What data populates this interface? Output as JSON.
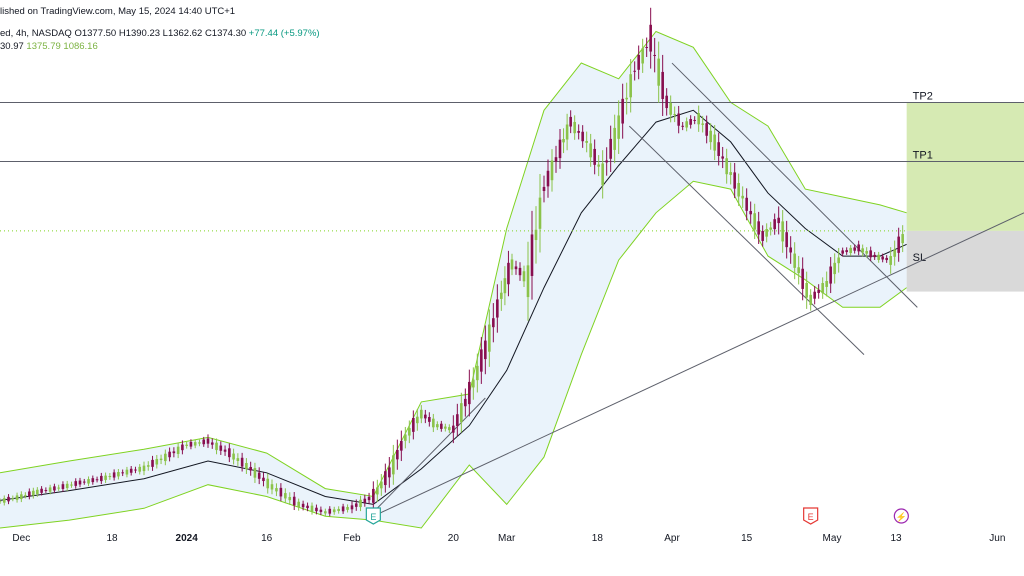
{
  "header": {
    "publish_line": "lished on TradingView.com, May 15, 2024 14:40 UTC+1",
    "symbol_line_prefix": "ed, 4h, NASDAQ",
    "ohlc": {
      "open": "O1377.50",
      "high": "H1390.23",
      "low": "L1362.62",
      "close": "C1374.30",
      "change": "+77.44 (+5.97%)"
    },
    "indicator_values": [
      "30.97",
      "1375.79",
      "1086.16"
    ]
  },
  "colors": {
    "up": "#8bc34a",
    "down": "#880e4f",
    "band": "#7fd321",
    "band_fill": "#eaf3fb",
    "basis": "#131722",
    "trendline": "#5d606b",
    "target_fill": "#c8e39a",
    "stop_fill": "#d5d5d5",
    "earnings": "#e53935",
    "dividends": "#9c27b0",
    "events": "#26a69a"
  },
  "levels": [
    {
      "label": "TP2",
      "price": 1700
    },
    {
      "label": "TP1",
      "price": 1550
    },
    {
      "label": "SL",
      "price": 1290
    }
  ],
  "x_axis_labels": [
    {
      "text": "Dec",
      "date": "2023-12-01"
    },
    {
      "text": "18",
      "date": "2023-12-18"
    },
    {
      "text": "2024",
      "date": "2024-01-01"
    },
    {
      "text": "16",
      "date": "2024-01-16"
    },
    {
      "text": "Feb",
      "date": "2024-02-01"
    },
    {
      "text": "20",
      "date": "2024-02-20"
    },
    {
      "text": "Mar",
      "date": "2024-03-01"
    },
    {
      "text": "18",
      "date": "2024-03-18"
    },
    {
      "text": "Apr",
      "date": "2024-04-01"
    },
    {
      "text": "15",
      "date": "2024-04-15"
    },
    {
      "text": "May",
      "date": "2024-05-01"
    },
    {
      "text": "13",
      "date": "2024-05-13"
    },
    {
      "text": "Jun",
      "date": "2024-06-01"
    }
  ],
  "event_markers": [
    {
      "icon": "E",
      "name": "events-icon",
      "date": "2024-02-05"
    },
    {
      "icon": "E",
      "name": "earnings-icon",
      "date": "2024-04-27"
    },
    {
      "icon": "⚡",
      "name": "dividends-icon",
      "date": "2024-05-14"
    }
  ],
  "chart_data": {
    "type": "candlestick",
    "title": "",
    "xlabel": "",
    "ylabel": "",
    "x_range": [
      "2023-11-27",
      "2024-06-06"
    ],
    "ylim": [
      620,
      1960
    ],
    "grid": false,
    "candle_closes": [
      {
        "date": "2023-11-27",
        "close": 688
      },
      {
        "date": "2023-12-01",
        "close": 700
      },
      {
        "date": "2023-12-04",
        "close": 712
      },
      {
        "date": "2023-12-08",
        "close": 722
      },
      {
        "date": "2023-12-12",
        "close": 735
      },
      {
        "date": "2023-12-16",
        "close": 745
      },
      {
        "date": "2023-12-20",
        "close": 760
      },
      {
        "date": "2023-12-24",
        "close": 772
      },
      {
        "date": "2023-12-28",
        "close": 800
      },
      {
        "date": "2024-01-01",
        "close": 830
      },
      {
        "date": "2024-01-05",
        "close": 840
      },
      {
        "date": "2024-01-09",
        "close": 810
      },
      {
        "date": "2024-01-13",
        "close": 770
      },
      {
        "date": "2024-01-17",
        "close": 725
      },
      {
        "date": "2024-01-22",
        "close": 680
      },
      {
        "date": "2024-01-27",
        "close": 660
      },
      {
        "date": "2024-02-01",
        "close": 672
      },
      {
        "date": "2024-02-05",
        "close": 700
      },
      {
        "date": "2024-02-08",
        "close": 760
      },
      {
        "date": "2024-02-11",
        "close": 850
      },
      {
        "date": "2024-02-14",
        "close": 910
      },
      {
        "date": "2024-02-17",
        "close": 880
      },
      {
        "date": "2024-02-20",
        "close": 870
      },
      {
        "date": "2024-02-23",
        "close": 960
      },
      {
        "date": "2024-02-26",
        "close": 1070
      },
      {
        "date": "2024-02-29",
        "close": 1210
      },
      {
        "date": "2024-03-02",
        "close": 1290
      },
      {
        "date": "2024-03-05",
        "close": 1250
      },
      {
        "date": "2024-03-08",
        "close": 1480
      },
      {
        "date": "2024-03-11",
        "close": 1580
      },
      {
        "date": "2024-03-13",
        "close": 1650
      },
      {
        "date": "2024-03-16",
        "close": 1600
      },
      {
        "date": "2024-03-19",
        "close": 1520
      },
      {
        "date": "2024-03-22",
        "close": 1640
      },
      {
        "date": "2024-03-25",
        "close": 1780
      },
      {
        "date": "2024-03-28",
        "close": 1860
      },
      {
        "date": "2024-03-31",
        "close": 1700
      },
      {
        "date": "2024-04-03",
        "close": 1640
      },
      {
        "date": "2024-04-06",
        "close": 1660
      },
      {
        "date": "2024-04-09",
        "close": 1600
      },
      {
        "date": "2024-04-12",
        "close": 1520
      },
      {
        "date": "2024-04-15",
        "close": 1440
      },
      {
        "date": "2024-04-18",
        "close": 1360
      },
      {
        "date": "2024-04-21",
        "close": 1400
      },
      {
        "date": "2024-04-24",
        "close": 1300
      },
      {
        "date": "2024-04-27",
        "close": 1200
      },
      {
        "date": "2024-04-30",
        "close": 1240
      },
      {
        "date": "2024-05-03",
        "close": 1320
      },
      {
        "date": "2024-05-06",
        "close": 1330
      },
      {
        "date": "2024-05-09",
        "close": 1310
      },
      {
        "date": "2024-05-12",
        "close": 1300
      },
      {
        "date": "2024-05-15",
        "close": 1374
      }
    ],
    "bollinger_upper": [
      {
        "date": "2023-11-27",
        "value": 760
      },
      {
        "date": "2023-12-10",
        "value": 790
      },
      {
        "date": "2023-12-24",
        "value": 820
      },
      {
        "date": "2024-01-05",
        "value": 850
      },
      {
        "date": "2024-01-16",
        "value": 810
      },
      {
        "date": "2024-01-27",
        "value": 720
      },
      {
        "date": "2024-02-05",
        "value": 700
      },
      {
        "date": "2024-02-14",
        "value": 940
      },
      {
        "date": "2024-02-23",
        "value": 960
      },
      {
        "date": "2024-03-01",
        "value": 1380
      },
      {
        "date": "2024-03-08",
        "value": 1680
      },
      {
        "date": "2024-03-15",
        "value": 1800
      },
      {
        "date": "2024-03-22",
        "value": 1760
      },
      {
        "date": "2024-03-29",
        "value": 1880
      },
      {
        "date": "2024-04-05",
        "value": 1840
      },
      {
        "date": "2024-04-12",
        "value": 1700
      },
      {
        "date": "2024-04-19",
        "value": 1640
      },
      {
        "date": "2024-04-26",
        "value": 1480
      },
      {
        "date": "2024-05-03",
        "value": 1460
      },
      {
        "date": "2024-05-10",
        "value": 1440
      },
      {
        "date": "2024-05-15",
        "value": 1420
      }
    ],
    "bollinger_basis": [
      {
        "date": "2023-11-27",
        "value": 690
      },
      {
        "date": "2023-12-10",
        "value": 715
      },
      {
        "date": "2023-12-24",
        "value": 745
      },
      {
        "date": "2024-01-05",
        "value": 790
      },
      {
        "date": "2024-01-16",
        "value": 760
      },
      {
        "date": "2024-01-27",
        "value": 700
      },
      {
        "date": "2024-02-05",
        "value": 680
      },
      {
        "date": "2024-02-14",
        "value": 770
      },
      {
        "date": "2024-02-23",
        "value": 880
      },
      {
        "date": "2024-03-01",
        "value": 1020
      },
      {
        "date": "2024-03-08",
        "value": 1230
      },
      {
        "date": "2024-03-15",
        "value": 1420
      },
      {
        "date": "2024-03-22",
        "value": 1540
      },
      {
        "date": "2024-03-29",
        "value": 1650
      },
      {
        "date": "2024-04-05",
        "value": 1680
      },
      {
        "date": "2024-04-12",
        "value": 1600
      },
      {
        "date": "2024-04-19",
        "value": 1470
      },
      {
        "date": "2024-04-26",
        "value": 1380
      },
      {
        "date": "2024-05-03",
        "value": 1310
      },
      {
        "date": "2024-05-10",
        "value": 1310
      },
      {
        "date": "2024-05-15",
        "value": 1340
      }
    ],
    "bollinger_lower": [
      {
        "date": "2023-11-27",
        "value": 620
      },
      {
        "date": "2023-12-10",
        "value": 640
      },
      {
        "date": "2023-12-24",
        "value": 670
      },
      {
        "date": "2024-01-05",
        "value": 730
      },
      {
        "date": "2024-01-16",
        "value": 700
      },
      {
        "date": "2024-01-27",
        "value": 650
      },
      {
        "date": "2024-02-05",
        "value": 640
      },
      {
        "date": "2024-02-14",
        "value": 620
      },
      {
        "date": "2024-02-23",
        "value": 780
      },
      {
        "date": "2024-03-01",
        "value": 680
      },
      {
        "date": "2024-03-08",
        "value": 800
      },
      {
        "date": "2024-03-15",
        "value": 1060
      },
      {
        "date": "2024-03-22",
        "value": 1300
      },
      {
        "date": "2024-03-29",
        "value": 1420
      },
      {
        "date": "2024-04-05",
        "value": 1500
      },
      {
        "date": "2024-04-12",
        "value": 1480
      },
      {
        "date": "2024-04-19",
        "value": 1310
      },
      {
        "date": "2024-04-26",
        "value": 1250
      },
      {
        "date": "2024-05-03",
        "value": 1180
      },
      {
        "date": "2024-05-10",
        "value": 1180
      },
      {
        "date": "2024-05-15",
        "value": 1230
      }
    ],
    "trendlines": [
      {
        "name": "support",
        "from": {
          "date": "2024-02-05",
          "price": 650
        },
        "to": {
          "date": "2024-06-06",
          "price": 1420
        }
      },
      {
        "name": "channel-upper",
        "from": {
          "date": "2024-04-01",
          "price": 1800
        },
        "to": {
          "date": "2024-05-17",
          "price": 1180
        }
      },
      {
        "name": "channel-lower",
        "from": {
          "date": "2024-03-24",
          "price": 1640
        },
        "to": {
          "date": "2024-05-07",
          "price": 1060
        }
      },
      {
        "name": "inner-falling",
        "from": {
          "date": "2024-02-05",
          "price": 660
        },
        "to": {
          "date": "2024-02-26",
          "price": 950
        }
      }
    ],
    "position": {
      "start": "2024-05-15",
      "target_top": 1700,
      "entry": 1374,
      "stop": 1220
    },
    "current_price": 1374
  }
}
